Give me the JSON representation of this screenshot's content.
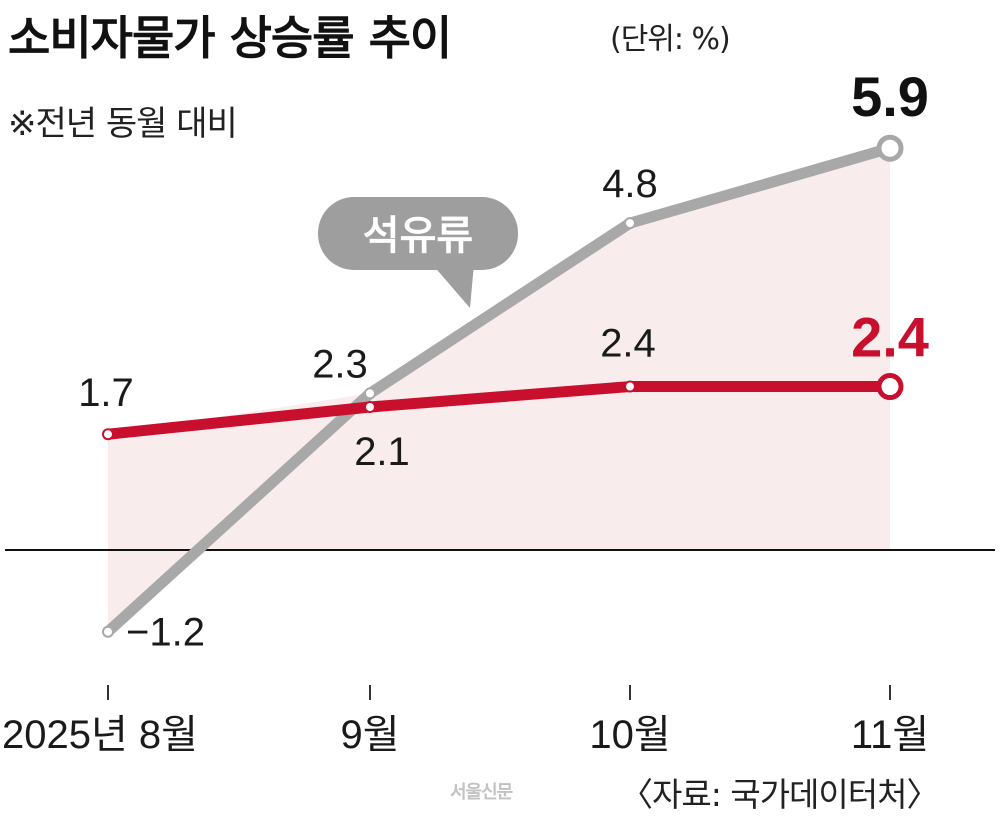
{
  "header": {
    "title": "소비자물가 상승률 추이",
    "unit": "(단위: %)",
    "note": "※전년 동월 대비"
  },
  "footer": {
    "source": "〈자료: 국가데이터처〉",
    "logo": "서울신문"
  },
  "colors": {
    "total": "#c8102e",
    "petroleum": "#a8a8a8",
    "fill": "#f8eced",
    "baseline": "#111111",
    "bubble": "#9e9e9e"
  },
  "chart_data": {
    "type": "line",
    "categories": [
      "2025년 8월",
      "9월",
      "10월",
      "11월"
    ],
    "series": [
      {
        "key": "total",
        "values": [
          1.7,
          2.1,
          2.4,
          2.4
        ],
        "labels": [
          "1.7",
          "2.1",
          "2.4",
          "2.4"
        ]
      },
      {
        "key": "petroleum",
        "name": "석유류",
        "values": [
          -1.2,
          2.3,
          4.8,
          5.9
        ],
        "labels": [
          "−1.2",
          "2.3",
          "4.8",
          "5.9"
        ]
      }
    ],
    "baseline": 0,
    "title": "소비자물가 상승률 추이",
    "ylabel": "",
    "xlabel": ""
  }
}
